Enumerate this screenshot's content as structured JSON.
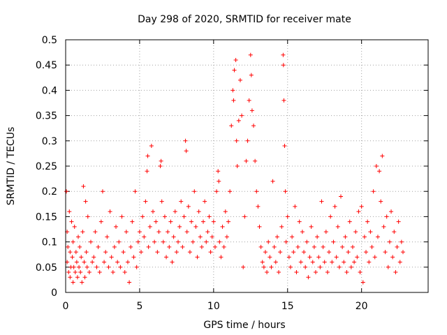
{
  "chart_data": {
    "type": "scatter",
    "title": "Day 298 of 2020, SRMTID for receiver mate",
    "xlabel": "GPS time / hours",
    "ylabel": "SRMTID / TECUs",
    "xlim": [
      0,
      24.5
    ],
    "ylim": [
      0,
      0.5
    ],
    "xticks": [
      0,
      5,
      10,
      15,
      20
    ],
    "xtick_labels": [
      "0",
      "5",
      "10",
      "15",
      "20"
    ],
    "yticks": [
      0,
      0.05,
      0.1,
      0.15,
      0.2,
      0.25,
      0.3,
      0.35,
      0.4,
      0.45,
      0.5
    ],
    "ytick_labels": [
      "0",
      "0.05",
      "0.1",
      "0.15",
      "0.2",
      "0.25",
      "0.3",
      "0.35",
      "0.4",
      "0.45",
      "0.5"
    ],
    "grid": true,
    "marker": "+",
    "color": "#ff0000",
    "series": [
      {
        "name": "SRMTID",
        "points": [
          [
            0.05,
            0.2
          ],
          [
            0.1,
            0.12
          ],
          [
            0.1,
            0.06
          ],
          [
            0.15,
            0.09
          ],
          [
            0.2,
            0.04
          ],
          [
            0.25,
            0.16
          ],
          [
            0.3,
            0.03
          ],
          [
            0.3,
            0.08
          ],
          [
            0.35,
            0.05
          ],
          [
            0.4,
            0.14
          ],
          [
            0.45,
            0.07
          ],
          [
            0.5,
            0.02
          ],
          [
            0.5,
            0.1
          ],
          [
            0.55,
            0.05
          ],
          [
            0.6,
            0.13
          ],
          [
            0.65,
            0.04
          ],
          [
            0.7,
            0.08
          ],
          [
            0.75,
            0.06
          ],
          [
            0.8,
            0.03
          ],
          [
            0.85,
            0.11
          ],
          [
            0.9,
            0.05
          ],
          [
            0.95,
            0.09
          ],
          [
            1.0,
            0.04
          ],
          [
            1.05,
            0.07
          ],
          [
            1.1,
            0.02
          ],
          [
            1.15,
            0.12
          ],
          [
            1.2,
            0.21
          ],
          [
            1.25,
            0.06
          ],
          [
            1.3,
            0.03
          ],
          [
            1.35,
            0.18
          ],
          [
            1.4,
            0.08
          ],
          [
            1.45,
            0.05
          ],
          [
            1.5,
            0.15
          ],
          [
            1.6,
            0.04
          ],
          [
            1.7,
            0.1
          ],
          [
            1.8,
            0.06
          ],
          [
            1.9,
            0.07
          ],
          [
            2.0,
            0.12
          ],
          [
            2.1,
            0.05
          ],
          [
            2.2,
            0.09
          ],
          [
            2.3,
            0.04
          ],
          [
            2.4,
            0.14
          ],
          [
            2.5,
            0.2
          ],
          [
            2.6,
            0.06
          ],
          [
            2.7,
            0.08
          ],
          [
            2.8,
            0.11
          ],
          [
            2.9,
            0.05
          ],
          [
            3.0,
            0.16
          ],
          [
            3.1,
            0.07
          ],
          [
            3.2,
            0.04
          ],
          [
            3.3,
            0.09
          ],
          [
            3.4,
            0.13
          ],
          [
            3.5,
            0.06
          ],
          [
            3.6,
            0.1
          ],
          [
            3.7,
            0.05
          ],
          [
            3.8,
            0.15
          ],
          [
            3.9,
            0.08
          ],
          [
            4.0,
            0.04
          ],
          [
            4.1,
            0.12
          ],
          [
            4.2,
            0.06
          ],
          [
            4.3,
            0.02
          ],
          [
            4.4,
            0.09
          ],
          [
            4.5,
            0.14
          ],
          [
            4.6,
            0.07
          ],
          [
            4.7,
            0.2
          ],
          [
            4.8,
            0.05
          ],
          [
            4.9,
            0.1
          ],
          [
            5.0,
            0.12
          ],
          [
            5.1,
            0.08
          ],
          [
            5.2,
            0.15
          ],
          [
            5.3,
            0.11
          ],
          [
            5.4,
            0.18
          ],
          [
            5.5,
            0.24
          ],
          [
            5.55,
            0.27
          ],
          [
            5.6,
            0.09
          ],
          [
            5.7,
            0.13
          ],
          [
            5.8,
            0.29
          ],
          [
            5.9,
            0.16
          ],
          [
            6.0,
            0.1
          ],
          [
            6.1,
            0.14
          ],
          [
            6.2,
            0.08
          ],
          [
            6.3,
            0.12
          ],
          [
            6.4,
            0.25
          ],
          [
            6.45,
            0.26
          ],
          [
            6.5,
            0.18
          ],
          [
            6.6,
            0.1
          ],
          [
            6.7,
            0.15
          ],
          [
            6.8,
            0.07
          ],
          [
            6.9,
            0.12
          ],
          [
            7.0,
            0.09
          ],
          [
            7.1,
            0.14
          ],
          [
            7.2,
            0.06
          ],
          [
            7.3,
            0.11
          ],
          [
            7.4,
            0.16
          ],
          [
            7.5,
            0.08
          ],
          [
            7.6,
            0.1
          ],
          [
            7.7,
            0.13
          ],
          [
            7.8,
            0.18
          ],
          [
            7.9,
            0.09
          ],
          [
            8.0,
            0.15
          ],
          [
            8.1,
            0.3
          ],
          [
            8.15,
            0.28
          ],
          [
            8.2,
            0.12
          ],
          [
            8.3,
            0.17
          ],
          [
            8.4,
            0.08
          ],
          [
            8.5,
            0.14
          ],
          [
            8.6,
            0.1
          ],
          [
            8.7,
            0.2
          ],
          [
            8.8,
            0.13
          ],
          [
            8.9,
            0.07
          ],
          [
            9.0,
            0.16
          ],
          [
            9.1,
            0.11
          ],
          [
            9.2,
            0.09
          ],
          [
            9.3,
            0.14
          ],
          [
            9.4,
            0.18
          ],
          [
            9.5,
            0.1
          ],
          [
            9.6,
            0.12
          ],
          [
            9.7,
            0.15
          ],
          [
            9.8,
            0.08
          ],
          [
            9.9,
            0.11
          ],
          [
            10.0,
            0.14
          ],
          [
            10.1,
            0.09
          ],
          [
            10.2,
            0.2
          ],
          [
            10.3,
            0.24
          ],
          [
            10.35,
            0.22
          ],
          [
            10.4,
            0.1
          ],
          [
            10.5,
            0.07
          ],
          [
            10.6,
            0.13
          ],
          [
            10.7,
            0.09
          ],
          [
            10.8,
            0.16
          ],
          [
            10.9,
            0.11
          ],
          [
            11.0,
            0.14
          ],
          [
            11.1,
            0.2
          ],
          [
            11.2,
            0.33
          ],
          [
            11.3,
            0.4
          ],
          [
            11.35,
            0.38
          ],
          [
            11.4,
            0.44
          ],
          [
            11.5,
            0.46
          ],
          [
            11.55,
            0.3
          ],
          [
            11.6,
            0.25
          ],
          [
            11.7,
            0.34
          ],
          [
            11.8,
            0.42
          ],
          [
            11.9,
            0.35
          ],
          [
            12.0,
            0.05
          ],
          [
            12.1,
            0.15
          ],
          [
            12.2,
            0.26
          ],
          [
            12.3,
            0.3
          ],
          [
            12.4,
            0.38
          ],
          [
            12.5,
            0.47
          ],
          [
            12.55,
            0.43
          ],
          [
            12.6,
            0.36
          ],
          [
            12.7,
            0.33
          ],
          [
            12.8,
            0.26
          ],
          [
            12.9,
            0.2
          ],
          [
            13.0,
            0.17
          ],
          [
            13.1,
            0.13
          ],
          [
            13.2,
            0.09
          ],
          [
            13.3,
            0.06
          ],
          [
            13.4,
            0.05
          ],
          [
            13.5,
            0.08
          ],
          [
            13.6,
            0.04
          ],
          [
            13.7,
            0.1
          ],
          [
            13.8,
            0.07
          ],
          [
            13.9,
            0.05
          ],
          [
            14.0,
            0.22
          ],
          [
            14.1,
            0.09
          ],
          [
            14.2,
            0.06
          ],
          [
            14.3,
            0.11
          ],
          [
            14.4,
            0.04
          ],
          [
            14.5,
            0.08
          ],
          [
            14.6,
            0.13
          ],
          [
            14.7,
            0.47
          ],
          [
            14.72,
            0.45
          ],
          [
            14.75,
            0.38
          ],
          [
            14.8,
            0.29
          ],
          [
            14.85,
            0.2
          ],
          [
            14.9,
            0.1
          ],
          [
            15.0,
            0.15
          ],
          [
            15.1,
            0.07
          ],
          [
            15.2,
            0.05
          ],
          [
            15.3,
            0.11
          ],
          [
            15.4,
            0.08
          ],
          [
            15.5,
            0.17
          ],
          [
            15.6,
            0.04
          ],
          [
            15.7,
            0.09
          ],
          [
            15.8,
            0.14
          ],
          [
            15.9,
            0.06
          ],
          [
            16.0,
            0.12
          ],
          [
            16.1,
            0.08
          ],
          [
            16.2,
            0.05
          ],
          [
            16.3,
            0.1
          ],
          [
            16.4,
            0.03
          ],
          [
            16.5,
            0.07
          ],
          [
            16.6,
            0.13
          ],
          [
            16.7,
            0.06
          ],
          [
            16.8,
            0.09
          ],
          [
            16.9,
            0.04
          ],
          [
            17.0,
            0.11
          ],
          [
            17.1,
            0.07
          ],
          [
            17.2,
            0.05
          ],
          [
            17.3,
            0.18
          ],
          [
            17.4,
            0.09
          ],
          [
            17.5,
            0.06
          ],
          [
            17.6,
            0.12
          ],
          [
            17.7,
            0.04
          ],
          [
            17.8,
            0.08
          ],
          [
            17.9,
            0.15
          ],
          [
            18.0,
            0.06
          ],
          [
            18.1,
            0.1
          ],
          [
            18.2,
            0.17
          ],
          [
            18.3,
            0.07
          ],
          [
            18.4,
            0.13
          ],
          [
            18.5,
            0.05
          ],
          [
            18.6,
            0.19
          ],
          [
            18.7,
            0.09
          ],
          [
            18.8,
            0.06
          ],
          [
            18.9,
            0.11
          ],
          [
            19.0,
            0.04
          ],
          [
            19.1,
            0.08
          ],
          [
            19.2,
            0.14
          ],
          [
            19.3,
            0.05
          ],
          [
            19.4,
            0.09
          ],
          [
            19.5,
            0.06
          ],
          [
            19.6,
            0.12
          ],
          [
            19.7,
            0.07
          ],
          [
            19.8,
            0.16
          ],
          [
            19.9,
            0.04
          ],
          [
            20.0,
            0.17
          ],
          [
            20.1,
            0.02
          ],
          [
            20.2,
            0.11
          ],
          [
            20.3,
            0.08
          ],
          [
            20.4,
            0.14
          ],
          [
            20.5,
            0.06
          ],
          [
            20.6,
            0.12
          ],
          [
            20.7,
            0.09
          ],
          [
            20.8,
            0.2
          ],
          [
            20.9,
            0.07
          ],
          [
            21.0,
            0.25
          ],
          [
            21.1,
            0.11
          ],
          [
            21.2,
            0.24
          ],
          [
            21.3,
            0.18
          ],
          [
            21.4,
            0.27
          ],
          [
            21.5,
            0.13
          ],
          [
            21.6,
            0.08
          ],
          [
            21.7,
            0.15
          ],
          [
            21.8,
            0.05
          ],
          [
            21.9,
            0.1
          ],
          [
            22.0,
            0.16
          ],
          [
            22.1,
            0.07
          ],
          [
            22.2,
            0.12
          ],
          [
            22.3,
            0.04
          ],
          [
            22.4,
            0.09
          ],
          [
            22.5,
            0.14
          ],
          [
            22.6,
            0.06
          ],
          [
            22.7,
            0.1
          ],
          [
            22.8,
            0.08
          ]
        ]
      }
    ]
  }
}
